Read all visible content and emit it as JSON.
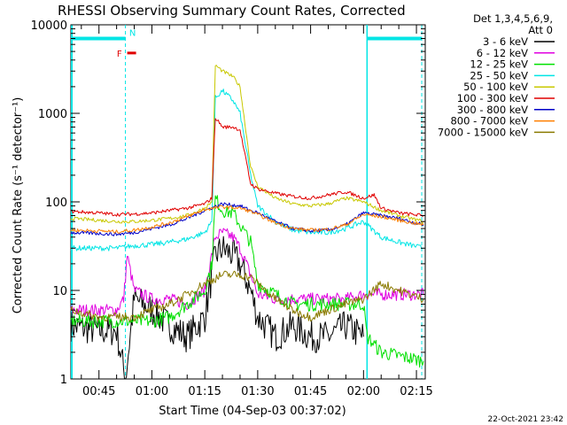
{
  "chart_data": {
    "type": "line",
    "title": "RHESSI Observing Summary Count Rates, Corrected",
    "xlabel": "Start Time (04-Sep-03 00:37:02)",
    "ylabel": "Corrected Count Rate (s⁻¹ detector⁻¹)",
    "y_scale": "log",
    "ylim": [
      1,
      10000
    ],
    "xlim": [
      "00:37:02",
      "02:17:30"
    ],
    "x_tick_labels": [
      "00:45",
      "01:00",
      "01:15",
      "01:30",
      "01:45",
      "02:00",
      "02:15"
    ],
    "y_tick_labels": [
      "1",
      "10",
      "100",
      "1000",
      "10000"
    ],
    "legend": {
      "header1": "Det 1,3,4,5,6,9,",
      "header2": "Att 0",
      "placement": "right, outside plot",
      "entries": [
        {
          "label": "3 - 6 keV",
          "color": "#000000"
        },
        {
          "label": "6 - 12 keV",
          "color": "#e000e0"
        },
        {
          "label": "12 - 25 keV",
          "color": "#00e000"
        },
        {
          "label": "25 - 50 keV",
          "color": "#00e5e5"
        },
        {
          "label": "50 - 100 keV",
          "color": "#c8c800"
        },
        {
          "label": "100 - 300 keV",
          "color": "#e00000"
        },
        {
          "label": "300 - 800 keV",
          "color": "#0000c8"
        },
        {
          "label": "800 - 7000 keV",
          "color": "#ff7f00"
        },
        {
          "label": "7000 - 15000 keV",
          "color": "#8a7a00"
        }
      ]
    },
    "markers": {
      "night_start": "00:37:02",
      "night_end": "00:52:30",
      "day_start": "02:01:00",
      "day_end": "02:16:30",
      "flag_F": "F",
      "flag_N": "N",
      "marker_color": "#00e5e5",
      "flag_color": "#e00000"
    },
    "series": [
      {
        "label": "3 - 6 keV",
        "color": "#000000",
        "t": [
          "00:37:02",
          "00:45",
          "00:50",
          "00:52:30",
          "00:55",
          "01:00",
          "01:05",
          "01:10",
          "01:15",
          "01:18",
          "01:20",
          "01:23",
          "01:25",
          "01:28",
          "01:30",
          "01:35",
          "01:40",
          "01:45",
          "01:50",
          "01:55",
          "02:00"
        ],
        "y": [
          4,
          3.5,
          3.5,
          1,
          8,
          6,
          4,
          3,
          5,
          25,
          30,
          25,
          20,
          10,
          5,
          3,
          4,
          3,
          3,
          4,
          3
        ]
      },
      {
        "label": "6 - 12 keV",
        "color": "#e000e0",
        "t": [
          "00:37:02",
          "00:45",
          "00:50",
          "00:52",
          "00:53",
          "00:55",
          "01:00",
          "01:05",
          "01:10",
          "01:15",
          "01:18",
          "01:20",
          "01:23",
          "01:25",
          "01:28",
          "01:30",
          "01:35",
          "01:40",
          "01:45",
          "01:50",
          "01:55",
          "02:00",
          "02:17"
        ],
        "y": [
          6,
          6,
          6,
          8,
          25,
          10,
          8,
          8,
          7,
          10,
          40,
          45,
          40,
          30,
          15,
          9,
          8,
          8,
          8,
          8,
          8,
          9,
          9
        ]
      },
      {
        "label": "12 - 25 keV",
        "color": "#00e000",
        "t": [
          "00:37:02",
          "00:45",
          "00:50",
          "00:55",
          "01:00",
          "01:05",
          "01:10",
          "01:15",
          "01:17",
          "01:18",
          "01:20",
          "01:23",
          "01:25",
          "01:28",
          "01:30",
          "01:35",
          "01:40",
          "01:45",
          "01:50",
          "01:55",
          "02:00",
          "02:01",
          "02:05",
          "02:17"
        ],
        "y": [
          4.5,
          4.5,
          4.5,
          4.5,
          4.5,
          5,
          7,
          10,
          20,
          110,
          80,
          75,
          55,
          35,
          12,
          9,
          7,
          7,
          7,
          7,
          7,
          3,
          2,
          1.6
        ]
      },
      {
        "label": "25 - 50 keV",
        "color": "#00e5e5",
        "t": [
          "00:37:02",
          "00:45",
          "00:50",
          "00:55",
          "01:00",
          "01:05",
          "01:10",
          "01:15",
          "01:17",
          "01:18",
          "01:20",
          "01:23",
          "01:25",
          "01:28",
          "01:30",
          "01:35",
          "01:40",
          "01:45",
          "01:50",
          "01:55",
          "02:00",
          "02:05",
          "02:10",
          "02:17"
        ],
        "y": [
          30,
          30,
          30,
          32,
          33,
          35,
          38,
          45,
          60,
          1500,
          1800,
          1400,
          1000,
          200,
          90,
          60,
          48,
          45,
          45,
          50,
          60,
          40,
          35,
          30
        ]
      },
      {
        "label": "50 - 100 keV",
        "color": "#c8c800",
        "t": [
          "00:37:02",
          "00:45",
          "00:50",
          "00:55",
          "01:00",
          "01:05",
          "01:10",
          "01:15",
          "01:17",
          "01:18",
          "01:20",
          "01:23",
          "01:25",
          "01:28",
          "01:30",
          "01:35",
          "01:40",
          "01:45",
          "01:50",
          "01:55",
          "02:00",
          "02:05",
          "02:10",
          "02:17"
        ],
        "y": [
          65,
          62,
          60,
          60,
          62,
          65,
          70,
          85,
          100,
          3500,
          3000,
          2600,
          2000,
          250,
          150,
          110,
          95,
          90,
          95,
          110,
          100,
          80,
          70,
          60
        ]
      },
      {
        "label": "100 - 300 keV",
        "color": "#e00000",
        "t": [
          "00:37:02",
          "00:45",
          "00:50",
          "00:55",
          "01:00",
          "01:05",
          "01:10",
          "01:15",
          "01:17",
          "01:18",
          "01:20",
          "01:23",
          "01:25",
          "01:28",
          "01:30",
          "01:35",
          "01:40",
          "01:45",
          "01:50",
          "01:55",
          "02:00",
          "02:03",
          "02:05",
          "02:10",
          "02:17"
        ],
        "y": [
          78,
          75,
          72,
          73,
          75,
          80,
          85,
          95,
          110,
          900,
          700,
          700,
          650,
          160,
          140,
          125,
          115,
          110,
          120,
          130,
          110,
          120,
          85,
          75,
          70
        ]
      },
      {
        "label": "300 - 800 keV",
        "color": "#0000c8",
        "t": [
          "00:37:02",
          "00:45",
          "00:50",
          "00:55",
          "01:00",
          "01:05",
          "01:10",
          "01:15",
          "01:20",
          "01:25",
          "01:28",
          "01:30",
          "01:35",
          "01:40",
          "01:45",
          "01:50",
          "01:55",
          "02:00",
          "02:05",
          "02:10",
          "02:17"
        ],
        "y": [
          45,
          44,
          43,
          45,
          50,
          55,
          65,
          80,
          95,
          90,
          80,
          75,
          60,
          50,
          47,
          48,
          55,
          75,
          70,
          65,
          55
        ]
      },
      {
        "label": "800 - 7000 keV",
        "color": "#ff7f00",
        "t": [
          "00:37:02",
          "00:45",
          "00:50",
          "00:55",
          "01:00",
          "01:05",
          "01:10",
          "01:15",
          "01:20",
          "01:25",
          "01:28",
          "01:30",
          "01:35",
          "01:40",
          "01:45",
          "01:50",
          "01:55",
          "02:00",
          "02:05",
          "02:10",
          "02:17"
        ],
        "y": [
          48,
          47,
          46,
          48,
          52,
          58,
          68,
          82,
          88,
          85,
          78,
          72,
          58,
          50,
          48,
          49,
          55,
          72,
          68,
          62,
          55
        ]
      },
      {
        "label": "7000 - 15000 keV",
        "color": "#8a7a00",
        "t": [
          "00:37:02",
          "00:45",
          "00:50",
          "00:55",
          "01:00",
          "01:05",
          "01:10",
          "01:15",
          "01:20",
          "01:25",
          "01:28",
          "01:30",
          "01:35",
          "01:40",
          "01:45",
          "01:50",
          "01:55",
          "02:00",
          "02:05",
          "02:10",
          "02:17"
        ],
        "y": [
          6,
          5,
          5,
          5,
          6,
          7,
          9,
          12,
          15,
          15,
          14,
          12,
          8,
          6,
          5,
          6,
          7,
          8,
          12,
          10,
          8
        ]
      }
    ]
  },
  "footer": {
    "date_stamp": "22-Oct-2021 23:42"
  }
}
